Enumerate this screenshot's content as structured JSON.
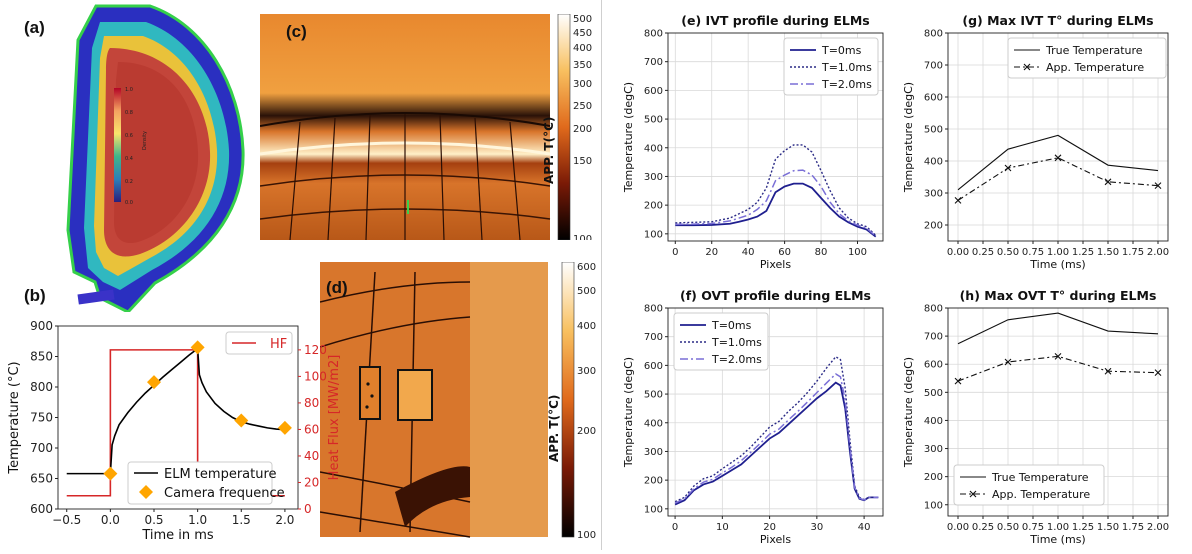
{
  "panel_labels": {
    "a": "(a)",
    "b": "(b)",
    "c": "(c)",
    "d": "(d)"
  },
  "colormap_a": {
    "ticks": [
      "0.0",
      "0.2",
      "0.4",
      "0.6",
      "0.8",
      "1.0"
    ],
    "label": "Density"
  },
  "colorbar_c": {
    "label": "APP. T(°C)",
    "ticks": [
      "500",
      "450",
      "400",
      "350",
      "300",
      "250",
      "200",
      "150",
      "100"
    ]
  },
  "colorbar_d": {
    "label": "APP. T(°C)",
    "ticks": [
      "600",
      "500",
      "400",
      "300",
      "200",
      "100"
    ]
  },
  "chart_data": [
    {
      "id": "b",
      "type": "line",
      "panel_label": "(b)",
      "xlabel": "Time in ms",
      "ylabel": "Temperature (°C)",
      "y2label": "Heat Flux [MW/m2]",
      "xlim": [
        -0.6,
        2.15
      ],
      "ylim": [
        600,
        900
      ],
      "y2lim": [
        0,
        138
      ],
      "xticks": [
        "−0.5",
        "0.0",
        "0.5",
        "1.0",
        "1.5",
        "2.0"
      ],
      "yticks": [
        "600",
        "650",
        "700",
        "750",
        "800",
        "850",
        "900"
      ],
      "y2ticks": [
        "0",
        "20",
        "40",
        "60",
        "80",
        "100",
        "120"
      ],
      "legend": {
        "hf": "HF",
        "elm": "ELM temperature",
        "camera": "Camera frequence"
      },
      "colors": {
        "hf": "#d62728",
        "elm": "#000000",
        "camera": "#ffa500",
        "y2axis": "#d62728"
      },
      "hf_series": {
        "x": [
          -0.5,
          0.0,
          0.0,
          1.0,
          1.0,
          2.0
        ],
        "y": [
          10,
          10,
          120,
          120,
          10,
          10
        ]
      },
      "elm_series": {
        "x": [
          -0.5,
          0.0,
          0.02,
          0.05,
          0.1,
          0.2,
          0.3,
          0.4,
          0.5,
          0.6,
          0.7,
          0.8,
          0.9,
          1.0,
          1.02,
          1.05,
          1.1,
          1.2,
          1.3,
          1.4,
          1.5,
          1.6,
          1.7,
          1.8,
          1.9,
          2.0
        ],
        "y": [
          658,
          658,
          705,
          720,
          738,
          758,
          775,
          790,
          803,
          816,
          828,
          840,
          852,
          863,
          820,
          807,
          792,
          773,
          760,
          750,
          743,
          739,
          736,
          733,
          731,
          730
        ]
      },
      "camera_points": {
        "x": [
          0.0,
          0.5,
          1.0,
          1.5,
          2.0
        ],
        "y": [
          658,
          808,
          865,
          745,
          733
        ]
      }
    },
    {
      "id": "e",
      "type": "line",
      "title": "(e) IVT profile during ELMs",
      "xlabel": "Pixels",
      "ylabel": "Temperature (degC)",
      "xlim": [
        -4,
        114
      ],
      "ylim": [
        75,
        800
      ],
      "xticks": [
        "0",
        "20",
        "40",
        "60",
        "80",
        "100"
      ],
      "yticks": [
        "100",
        "200",
        "300",
        "400",
        "500",
        "600",
        "700",
        "800"
      ],
      "series": [
        {
          "name": "T=0ms",
          "x": [
            0,
            10,
            20,
            30,
            35,
            40,
            45,
            50,
            55,
            60,
            65,
            70,
            75,
            80,
            85,
            90,
            95,
            100,
            105,
            110
          ],
          "y": [
            130,
            130,
            131,
            135,
            142,
            150,
            160,
            180,
            245,
            265,
            275,
            275,
            260,
            225,
            190,
            160,
            140,
            125,
            115,
            90
          ]
        },
        {
          "name": "T=1.0ms",
          "x": [
            0,
            10,
            20,
            30,
            35,
            40,
            45,
            50,
            55,
            60,
            65,
            70,
            75,
            80,
            85,
            90,
            95,
            100,
            105,
            110
          ],
          "y": [
            138,
            140,
            142,
            155,
            170,
            185,
            210,
            260,
            360,
            390,
            410,
            410,
            385,
            320,
            250,
            190,
            155,
            135,
            125,
            95
          ]
        },
        {
          "name": "T=2.0ms",
          "x": [
            0,
            10,
            20,
            30,
            35,
            40,
            45,
            50,
            55,
            60,
            65,
            70,
            75,
            80,
            85,
            90,
            95,
            100,
            105,
            110
          ],
          "y": [
            133,
            134,
            136,
            145,
            155,
            165,
            185,
            215,
            285,
            305,
            320,
            322,
            305,
            265,
            210,
            170,
            145,
            130,
            120,
            92
          ]
        }
      ]
    },
    {
      "id": "f",
      "type": "line",
      "title": "(f) OVT profile during ELMs",
      "xlabel": "Pixels",
      "ylabel": "Temperature (degC)",
      "xlim": [
        -1.5,
        44
      ],
      "ylim": [
        75,
        800
      ],
      "xticks": [
        "0",
        "10",
        "20",
        "30",
        "40"
      ],
      "yticks": [
        "100",
        "200",
        "300",
        "400",
        "500",
        "600",
        "700",
        "800"
      ],
      "series": [
        {
          "name": "T=0ms",
          "x": [
            0,
            2,
            4,
            6,
            8,
            10,
            12,
            14,
            16,
            18,
            20,
            22,
            24,
            26,
            28,
            30,
            32,
            34,
            35,
            36,
            37,
            38,
            39,
            40,
            41,
            42,
            43
          ],
          "y": [
            115,
            130,
            165,
            185,
            195,
            215,
            235,
            255,
            285,
            315,
            345,
            365,
            395,
            425,
            455,
            485,
            510,
            540,
            530,
            450,
            300,
            170,
            135,
            130,
            140,
            140,
            140
          ]
        },
        {
          "name": "T=1.0ms",
          "x": [
            0,
            2,
            4,
            6,
            8,
            10,
            12,
            14,
            16,
            18,
            20,
            22,
            24,
            26,
            28,
            30,
            32,
            34,
            35,
            36,
            37,
            38,
            39,
            40,
            41,
            42,
            43
          ],
          "y": [
            125,
            140,
            180,
            205,
            215,
            240,
            262,
            285,
            315,
            350,
            385,
            405,
            440,
            470,
            505,
            545,
            590,
            630,
            620,
            520,
            340,
            180,
            140,
            132,
            140,
            140,
            140
          ]
        },
        {
          "name": "T=2.0ms",
          "x": [
            0,
            2,
            4,
            6,
            8,
            10,
            12,
            14,
            16,
            18,
            20,
            22,
            24,
            26,
            28,
            30,
            32,
            34,
            35,
            36,
            37,
            38,
            39,
            40,
            41,
            42,
            43
          ],
          "y": [
            120,
            135,
            170,
            193,
            203,
            225,
            245,
            268,
            297,
            328,
            360,
            378,
            410,
            440,
            472,
            505,
            538,
            570,
            560,
            478,
            318,
            175,
            137,
            131,
            140,
            140,
            140
          ]
        }
      ]
    },
    {
      "id": "g",
      "type": "line",
      "title": "(g) Max IVT T° during ELMs",
      "xlabel": "Time (ms)",
      "ylabel": "Temperature (degC)",
      "xlim": [
        -0.1,
        2.1
      ],
      "ylim": [
        150,
        800
      ],
      "xticks": [
        "0.00",
        "0.25",
        "0.50",
        "0.75",
        "1.00",
        "1.25",
        "1.50",
        "1.75",
        "2.00"
      ],
      "yticks": [
        "200",
        "300",
        "400",
        "500",
        "600",
        "700",
        "800"
      ],
      "series": [
        {
          "name": "True Temperature",
          "x": [
            0,
            0.5,
            1.0,
            1.5,
            2.0
          ],
          "y": [
            310,
            437,
            480,
            387,
            370
          ]
        },
        {
          "name": "App. Temperature",
          "x": [
            0,
            0.5,
            1.0,
            1.5,
            2.0
          ],
          "y": [
            277,
            378,
            410,
            335,
            323
          ]
        }
      ]
    },
    {
      "id": "h",
      "type": "line",
      "title": "(h) Max OVT T° during ELMs",
      "xlabel": "Time (ms)",
      "ylabel": "Temperature (degC)",
      "xlim": [
        -0.1,
        2.1
      ],
      "ylim": [
        60,
        800
      ],
      "xticks": [
        "0.00",
        "0.25",
        "0.50",
        "0.75",
        "1.00",
        "1.25",
        "1.50",
        "1.75",
        "2.00"
      ],
      "yticks": [
        "100",
        "200",
        "300",
        "400",
        "500",
        "600",
        "700",
        "800"
      ],
      "series": [
        {
          "name": "True Temperature",
          "x": [
            0,
            0.5,
            1.0,
            1.5,
            2.0
          ],
          "y": [
            673,
            758,
            782,
            718,
            708
          ]
        },
        {
          "name": "App. Temperature",
          "x": [
            0,
            0.5,
            1.0,
            1.5,
            2.0
          ],
          "y": [
            540,
            608,
            628,
            575,
            570
          ]
        }
      ]
    }
  ]
}
